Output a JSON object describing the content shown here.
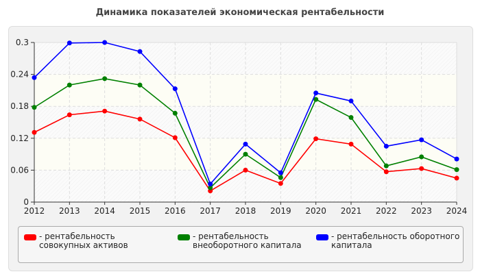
{
  "chart_data": {
    "type": "line",
    "title": "Динамика показателей экономическая рентабельности",
    "x": [
      2012,
      2013,
      2014,
      2015,
      2016,
      2017,
      2018,
      2019,
      2020,
      2021,
      2022,
      2023,
      2024
    ],
    "ylim": [
      0,
      0.3
    ],
    "yticks": [
      "0",
      "0.06",
      "0.12",
      "0.18",
      "0.24",
      "0.3"
    ],
    "grid": true,
    "legend": "bottom",
    "series": [
      {
        "name": "- рентабельность совокупных активов",
        "color": "#ff0000",
        "values": [
          0.131,
          0.164,
          0.171,
          0.156,
          0.121,
          0.021,
          0.06,
          0.035,
          0.119,
          0.109,
          0.057,
          0.063,
          0.045
        ]
      },
      {
        "name": "- рентабельность внеоборотного капитала",
        "color": "#008000",
        "values": [
          0.178,
          0.22,
          0.232,
          0.22,
          0.167,
          0.027,
          0.09,
          0.046,
          0.193,
          0.159,
          0.068,
          0.085,
          0.061
        ]
      },
      {
        "name": "- рентабельность оборотного капитала",
        "color": "#0000ff",
        "values": [
          0.234,
          0.299,
          0.3,
          0.283,
          0.213,
          0.034,
          0.109,
          0.055,
          0.205,
          0.19,
          0.105,
          0.117,
          0.081
        ]
      }
    ]
  }
}
